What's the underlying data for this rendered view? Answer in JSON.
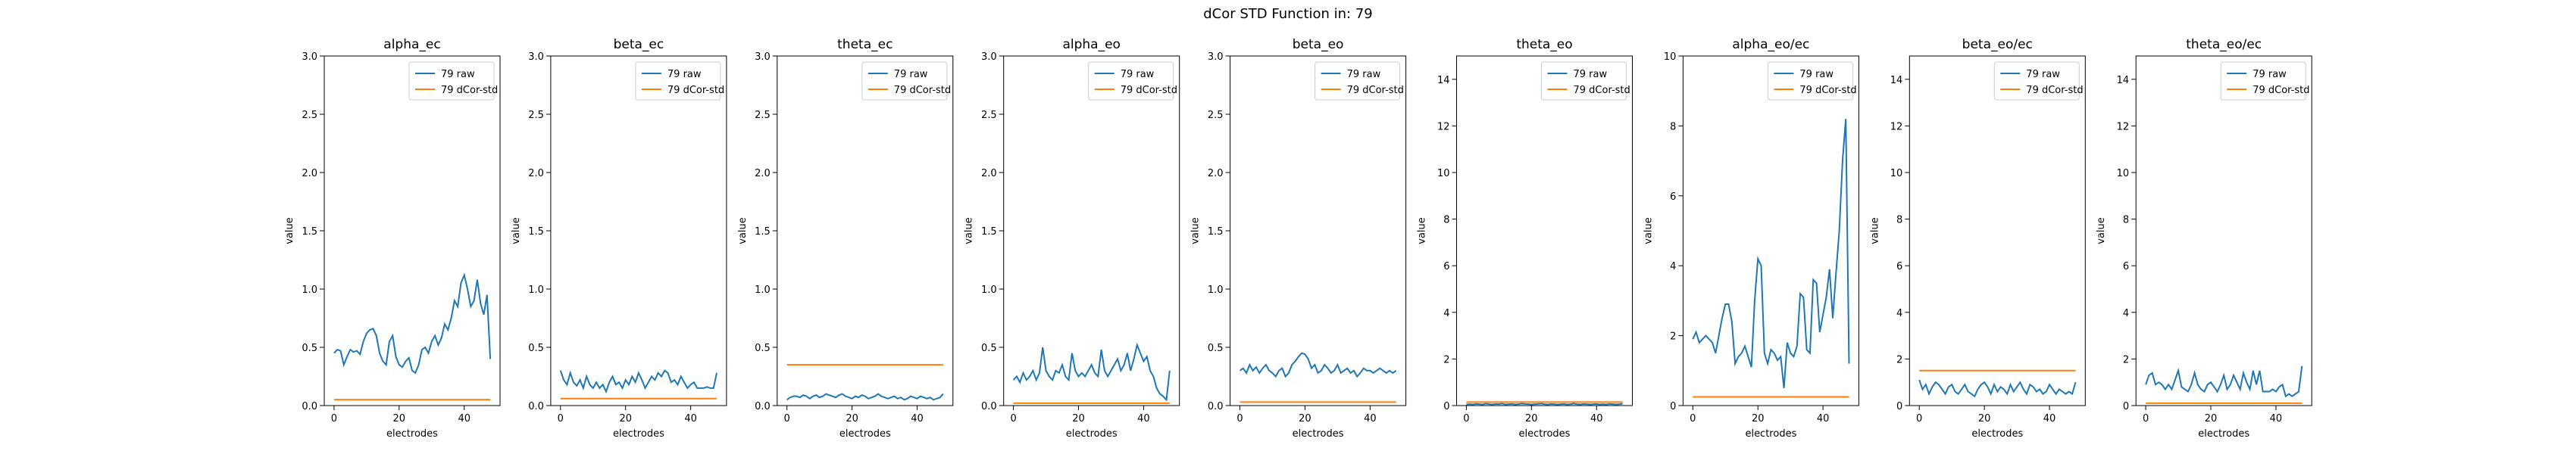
{
  "figure": {
    "suptitle": "dCor STD Function in: 79"
  },
  "colors": {
    "raw": "#1f77b4",
    "std": "#ff7f0e",
    "axes": "#000000"
  },
  "chart_data": [
    {
      "type": "line",
      "title": "alpha_ec",
      "xlabel": "electrodes",
      "ylabel": "value",
      "ylim": [
        0,
        3.0
      ],
      "yticks": [
        0.0,
        0.5,
        1.0,
        1.5,
        2.0,
        2.5,
        3.0
      ],
      "xticks": [
        0,
        20,
        40
      ],
      "legend": "top-right",
      "series": [
        {
          "name": "79 raw",
          "values": [
            0.45,
            0.48,
            0.47,
            0.35,
            0.42,
            0.48,
            0.46,
            0.47,
            0.44,
            0.55,
            0.62,
            0.65,
            0.66,
            0.6,
            0.45,
            0.38,
            0.35,
            0.55,
            0.6,
            0.42,
            0.35,
            0.33,
            0.38,
            0.41,
            0.3,
            0.28,
            0.35,
            0.48,
            0.5,
            0.45,
            0.55,
            0.6,
            0.52,
            0.58,
            0.7,
            0.65,
            0.75,
            0.9,
            0.85,
            1.05,
            1.12,
            1.0,
            0.85,
            0.9,
            1.08,
            0.88,
            0.78,
            0.95,
            0.4
          ]
        },
        {
          "name": "79 dCor-std",
          "constant": 0.05
        }
      ]
    },
    {
      "type": "line",
      "title": "beta_ec",
      "xlabel": "electrodes",
      "ylabel": "value",
      "ylim": [
        0,
        3.0
      ],
      "yticks": [
        0.0,
        0.5,
        1.0,
        1.5,
        2.0,
        2.5,
        3.0
      ],
      "xticks": [
        0,
        20,
        40
      ],
      "legend": "top-right",
      "series": [
        {
          "name": "79 raw",
          "values": [
            0.3,
            0.22,
            0.18,
            0.28,
            0.2,
            0.17,
            0.22,
            0.15,
            0.25,
            0.18,
            0.15,
            0.2,
            0.15,
            0.18,
            0.12,
            0.2,
            0.25,
            0.18,
            0.2,
            0.15,
            0.22,
            0.18,
            0.25,
            0.2,
            0.28,
            0.22,
            0.15,
            0.2,
            0.25,
            0.22,
            0.28,
            0.25,
            0.3,
            0.28,
            0.2,
            0.22,
            0.18,
            0.25,
            0.2,
            0.15,
            0.18,
            0.2,
            0.15,
            0.15,
            0.15,
            0.16,
            0.15,
            0.15,
            0.28
          ]
        },
        {
          "name": "79 dCor-std",
          "constant": 0.06
        }
      ]
    },
    {
      "type": "line",
      "title": "theta_ec",
      "xlabel": "electrodes",
      "ylabel": "value",
      "ylim": [
        0,
        3.0
      ],
      "yticks": [
        0.0,
        0.5,
        1.0,
        1.5,
        2.0,
        2.5,
        3.0
      ],
      "xticks": [
        0,
        20,
        40
      ],
      "legend": "top-right",
      "series": [
        {
          "name": "79 raw",
          "values": [
            0.05,
            0.07,
            0.08,
            0.08,
            0.07,
            0.09,
            0.08,
            0.06,
            0.08,
            0.09,
            0.07,
            0.08,
            0.1,
            0.09,
            0.08,
            0.07,
            0.09,
            0.1,
            0.08,
            0.07,
            0.06,
            0.08,
            0.07,
            0.09,
            0.08,
            0.06,
            0.07,
            0.08,
            0.1,
            0.08,
            0.07,
            0.06,
            0.07,
            0.08,
            0.06,
            0.07,
            0.05,
            0.06,
            0.08,
            0.07,
            0.06,
            0.08,
            0.07,
            0.06,
            0.07,
            0.05,
            0.06,
            0.07,
            0.1
          ]
        },
        {
          "name": "79 dCor-std",
          "constant": 0.35
        }
      ]
    },
    {
      "type": "line",
      "title": "alpha_eo",
      "xlabel": "electrodes",
      "ylabel": "value",
      "ylim": [
        0,
        3.0
      ],
      "yticks": [
        0.0,
        0.5,
        1.0,
        1.5,
        2.0,
        2.5,
        3.0
      ],
      "xticks": [
        0,
        20,
        40
      ],
      "legend": "top-right",
      "series": [
        {
          "name": "79 raw",
          "values": [
            0.22,
            0.25,
            0.2,
            0.28,
            0.22,
            0.25,
            0.3,
            0.22,
            0.28,
            0.5,
            0.3,
            0.25,
            0.22,
            0.3,
            0.28,
            0.35,
            0.25,
            0.22,
            0.45,
            0.3,
            0.25,
            0.28,
            0.25,
            0.3,
            0.35,
            0.28,
            0.25,
            0.48,
            0.3,
            0.25,
            0.3,
            0.35,
            0.4,
            0.3,
            0.35,
            0.45,
            0.3,
            0.4,
            0.52,
            0.45,
            0.38,
            0.42,
            0.3,
            0.25,
            0.15,
            0.1,
            0.08,
            0.05,
            0.3
          ]
        },
        {
          "name": "79 dCor-std",
          "constant": 0.02
        }
      ]
    },
    {
      "type": "line",
      "title": "beta_eo",
      "xlabel": "electrodes",
      "ylabel": "value",
      "ylim": [
        0,
        3.0
      ],
      "yticks": [
        0.0,
        0.5,
        1.0,
        1.5,
        2.0,
        2.5,
        3.0
      ],
      "xticks": [
        0,
        20,
        40
      ],
      "legend": "top-right",
      "series": [
        {
          "name": "79 raw",
          "values": [
            0.3,
            0.32,
            0.28,
            0.35,
            0.3,
            0.33,
            0.28,
            0.32,
            0.35,
            0.3,
            0.28,
            0.25,
            0.3,
            0.32,
            0.25,
            0.28,
            0.35,
            0.38,
            0.42,
            0.45,
            0.44,
            0.4,
            0.32,
            0.35,
            0.28,
            0.3,
            0.35,
            0.32,
            0.28,
            0.3,
            0.35,
            0.28,
            0.3,
            0.32,
            0.28,
            0.3,
            0.25,
            0.28,
            0.32,
            0.3,
            0.3,
            0.28,
            0.3,
            0.32,
            0.3,
            0.28,
            0.3,
            0.28,
            0.3
          ]
        },
        {
          "name": "79 dCor-std",
          "constant": 0.03
        }
      ]
    },
    {
      "type": "line",
      "title": "theta_eo",
      "xlabel": "electrodes",
      "ylabel": "value",
      "ylim": [
        0,
        15
      ],
      "yticks": [
        0,
        2,
        4,
        6,
        8,
        10,
        12,
        14
      ],
      "xticks": [
        0,
        20,
        40
      ],
      "legend": "top-right",
      "series": [
        {
          "name": "79 raw",
          "values": [
            0.05,
            0.06,
            0.05,
            0.07,
            0.06,
            0.05,
            0.08,
            0.06,
            0.05,
            0.07,
            0.06,
            0.08,
            0.05,
            0.06,
            0.07,
            0.05,
            0.06,
            0.08,
            0.07,
            0.06,
            0.05,
            0.06,
            0.07,
            0.08,
            0.06,
            0.05,
            0.07,
            0.06,
            0.05,
            0.06,
            0.07,
            0.05,
            0.06,
            0.08,
            0.06,
            0.05,
            0.07,
            0.06,
            0.05,
            0.06,
            0.07,
            0.05,
            0.06,
            0.05,
            0.07,
            0.06,
            0.05,
            0.06,
            0.08
          ]
        },
        {
          "name": "79 dCor-std",
          "constant": 0.15
        }
      ]
    },
    {
      "type": "line",
      "title": "alpha_eo/ec",
      "xlabel": "electrodes",
      "ylabel": "value",
      "ylim": [
        0,
        10
      ],
      "yticks": [
        0,
        2,
        4,
        6,
        8,
        10
      ],
      "xticks": [
        0,
        20,
        40
      ],
      "legend": "top-right",
      "series": [
        {
          "name": "79 raw",
          "values": [
            1.9,
            2.1,
            1.8,
            1.9,
            2.0,
            1.9,
            1.8,
            1.5,
            2.0,
            2.5,
            2.9,
            2.9,
            2.4,
            1.2,
            1.4,
            1.5,
            1.7,
            1.4,
            1.1,
            3.0,
            4.2,
            4.0,
            1.5,
            1.2,
            1.6,
            1.5,
            1.3,
            1.4,
            0.5,
            1.8,
            1.5,
            1.4,
            1.7,
            3.2,
            3.1,
            1.6,
            1.5,
            3.6,
            3.5,
            2.1,
            2.6,
            3.1,
            3.9,
            2.5,
            3.8,
            5.0,
            7.0,
            8.2,
            1.2
          ]
        },
        {
          "name": "79 dCor-std",
          "constant": 0.25
        }
      ]
    },
    {
      "type": "line",
      "title": "beta_eo/ec",
      "xlabel": "electrodes",
      "ylabel": "value",
      "ylim": [
        0,
        15
      ],
      "yticks": [
        0,
        2,
        4,
        6,
        8,
        10,
        12,
        14
      ],
      "xticks": [
        0,
        20,
        40
      ],
      "legend": "top-right",
      "series": [
        {
          "name": "79 raw",
          "values": [
            1.1,
            0.7,
            0.9,
            0.5,
            0.8,
            1.0,
            0.9,
            0.7,
            0.5,
            0.8,
            0.9,
            0.6,
            0.5,
            0.7,
            0.9,
            0.6,
            0.5,
            0.4,
            0.7,
            0.9,
            1.0,
            0.8,
            0.5,
            0.9,
            0.6,
            0.8,
            0.7,
            0.5,
            0.9,
            0.6,
            0.8,
            1.0,
            0.7,
            0.5,
            0.9,
            0.8,
            0.6,
            0.7,
            0.5,
            0.6,
            0.9,
            0.7,
            0.5,
            0.7,
            0.6,
            0.5,
            0.6,
            0.5,
            1.0
          ]
        },
        {
          "name": "79 dCor-std",
          "constant": 1.5
        }
      ]
    },
    {
      "type": "line",
      "title": "theta_eo/ec",
      "xlabel": "electrodes",
      "ylabel": "value",
      "ylim": [
        0,
        15
      ],
      "yticks": [
        0,
        2,
        4,
        6,
        8,
        10,
        12,
        14
      ],
      "xticks": [
        0,
        20,
        40
      ],
      "legend": "top-right",
      "series": [
        {
          "name": "79 raw",
          "values": [
            0.9,
            1.3,
            1.4,
            0.9,
            1.0,
            0.9,
            0.7,
            0.9,
            0.7,
            1.1,
            1.5,
            0.8,
            0.7,
            0.6,
            0.9,
            1.4,
            0.9,
            0.7,
            0.6,
            0.9,
            1.0,
            0.8,
            0.6,
            0.9,
            1.3,
            0.7,
            0.9,
            1.3,
            1.0,
            0.7,
            1.4,
            1.0,
            0.7,
            1.5,
            0.9,
            1.5,
            0.6,
            0.6,
            0.6,
            0.7,
            0.6,
            0.8,
            0.9,
            0.4,
            0.5,
            0.4,
            0.5,
            0.6,
            1.7
          ]
        },
        {
          "name": "79 dCor-std",
          "constant": 0.1
        }
      ]
    }
  ]
}
